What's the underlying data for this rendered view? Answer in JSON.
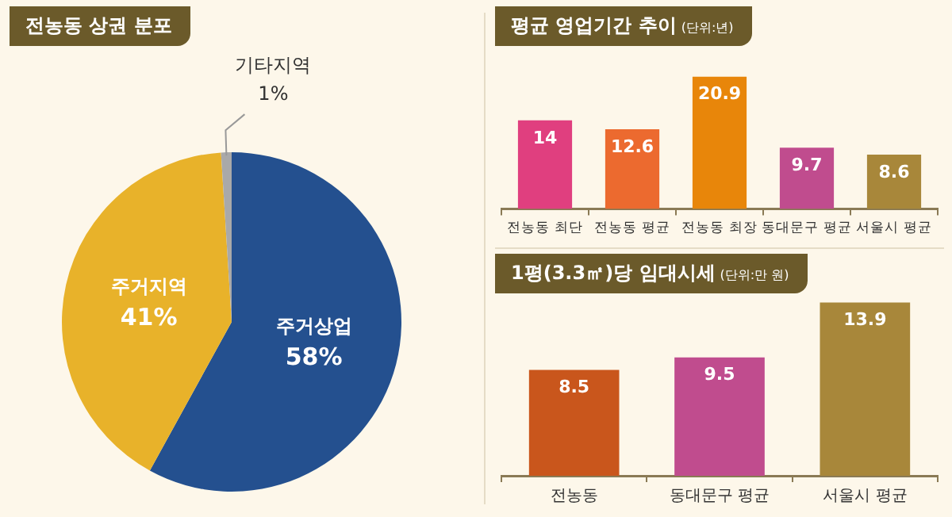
{
  "chart_data": [
    {
      "type": "pie",
      "title": "전농동 상권 분포",
      "categories": [
        "주거상업",
        "주거지역",
        "기타지역"
      ],
      "values": [
        58,
        41,
        1
      ],
      "colors": [
        "#24508f",
        "#e8b22a",
        "#a9a9a9"
      ],
      "value_labels": [
        "58%",
        "41%",
        "1%"
      ],
      "legend": false
    },
    {
      "type": "bar",
      "title": "평균 영업기간 추이",
      "subtitle": "(단위:년)",
      "categories": [
        "전농동 최단",
        "전농동 평균",
        "전농동 최장",
        "동대문구 평균",
        "서울시 평균"
      ],
      "values": [
        14,
        12.6,
        20.9,
        9.7,
        8.6
      ],
      "colors": [
        "#e03f7f",
        "#ec6a2f",
        "#e8860a",
        "#c04c8e",
        "#a8873a"
      ],
      "data_labels": true,
      "legend": false,
      "grid": false,
      "tick_labels": "x"
    },
    {
      "type": "bar",
      "title": "1평(3.3㎡)당 임대시세",
      "subtitle": "(단위:만 원)",
      "categories": [
        "전농동",
        "동대문구 평균",
        "서울시 평균"
      ],
      "values": [
        8.5,
        9.5,
        13.9
      ],
      "colors": [
        "#c9561c",
        "#c04c8e",
        "#a8873a"
      ],
      "data_labels": true,
      "legend": false,
      "grid": false,
      "tick_labels": "x"
    }
  ]
}
